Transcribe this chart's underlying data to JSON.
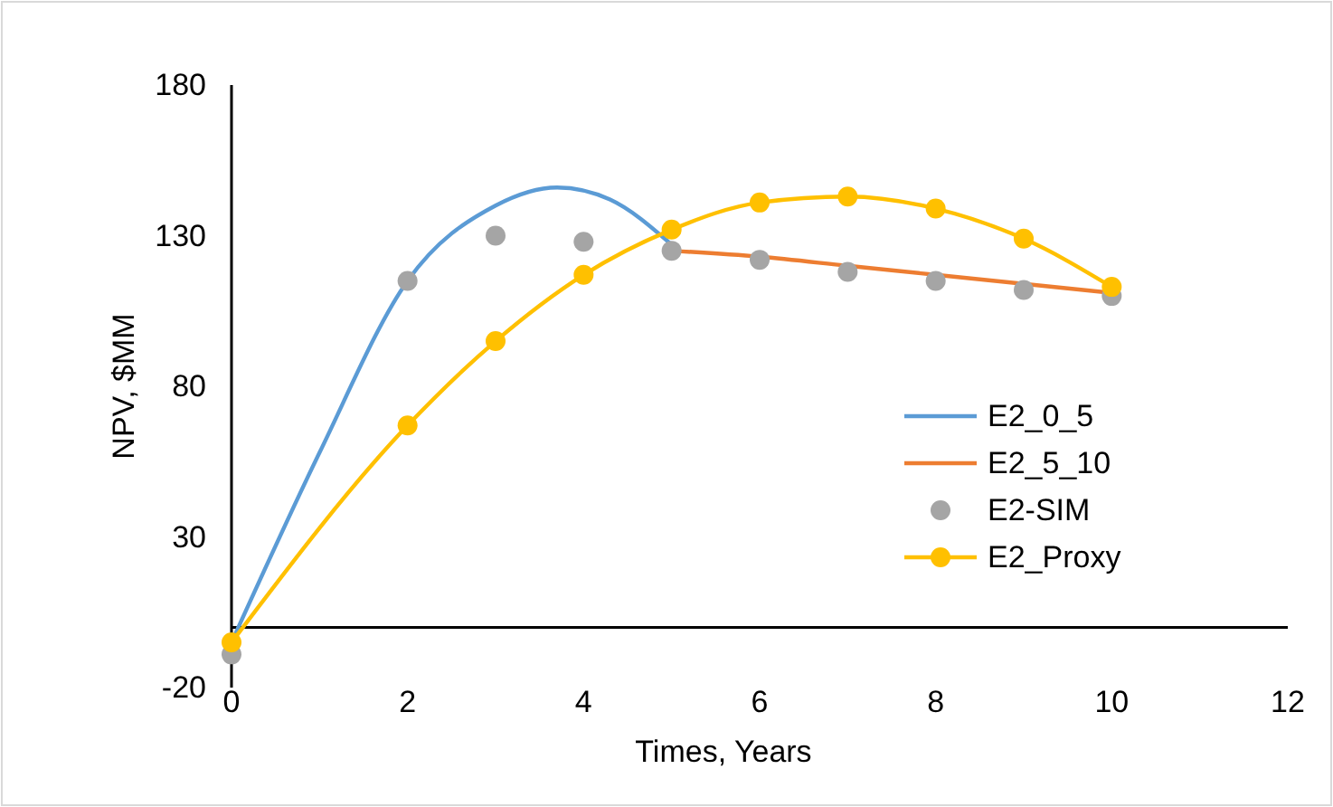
{
  "chart_data": {
    "type": "line",
    "xlabel": "Times, Years",
    "ylabel": "NPV, $MM",
    "xlim": [
      0,
      12
    ],
    "xticks": [
      0,
      2,
      4,
      6,
      8,
      10,
      12
    ],
    "ylim": [
      -20,
      180
    ],
    "yticks": [
      -20,
      30,
      80,
      130,
      180
    ],
    "grid": false,
    "legend": "right",
    "series": [
      {
        "name": "E2_0_5",
        "color": "#5b9bd5",
        "marker": "none",
        "x": [
          0,
          1,
          2,
          3,
          3.7,
          4.3,
          5
        ],
        "values": [
          -5,
          58,
          115,
          140,
          146,
          142,
          127
        ]
      },
      {
        "name": "E2_5_10",
        "color": "#ed7d31",
        "marker": "none",
        "x": [
          5,
          6,
          7,
          8,
          9,
          10
        ],
        "values": [
          125,
          123,
          120,
          117,
          114,
          111
        ]
      },
      {
        "name": "E2-SIM",
        "type": "scatter",
        "color": "#a5a5a5",
        "marker": "circle",
        "x": [
          0,
          2,
          3,
          4,
          5,
          6,
          7,
          8,
          9,
          10
        ],
        "values": [
          -9,
          115,
          130,
          128,
          125,
          122,
          118,
          115,
          112,
          110
        ]
      },
      {
        "name": "E2_Proxy",
        "color": "#ffc000",
        "marker": "circle",
        "x": [
          0,
          2,
          3,
          4,
          5,
          6,
          7,
          8,
          9,
          10
        ],
        "values": [
          -5,
          67,
          95,
          117,
          132,
          141,
          143,
          139,
          129,
          113
        ]
      }
    ]
  }
}
